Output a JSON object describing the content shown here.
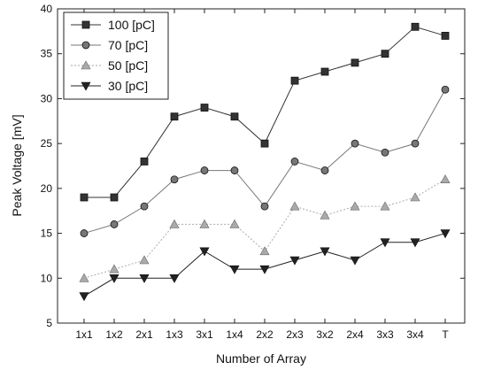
{
  "chart_data": {
    "type": "line",
    "xlabel": "Number of Array",
    "ylabel": "Peak Voltage [mV]",
    "categories": [
      "1x1",
      "1x2",
      "2x1",
      "1x3",
      "3x1",
      "1x4",
      "2x2",
      "2x3",
      "3x2",
      "2x4",
      "3x3",
      "3x4",
      "T"
    ],
    "ylim": [
      5,
      40
    ],
    "yticks": [
      5,
      10,
      15,
      20,
      25,
      30,
      35,
      40
    ],
    "grid": false,
    "legend_position": "top-left",
    "series": [
      {
        "name": "100 [pC]",
        "marker": "square",
        "color": "#333333",
        "dash": "none",
        "values": [
          19,
          19,
          23,
          28,
          29,
          28,
          25,
          32,
          33,
          34,
          35,
          38,
          37
        ]
      },
      {
        "name": "70 [pC]",
        "marker": "circle",
        "color": "#777777",
        "dash": "none",
        "values": [
          15,
          16,
          18,
          21,
          22,
          22,
          18,
          23,
          22,
          25,
          24,
          25,
          31
        ]
      },
      {
        "name": "50 [pC]",
        "marker": "triangle-up",
        "color": "#aaaaaa",
        "dash": "dotted",
        "values": [
          10,
          11,
          12,
          16,
          16,
          16,
          13,
          18,
          17,
          18,
          18,
          19,
          21
        ]
      },
      {
        "name": "30 [pC]",
        "marker": "triangle-down",
        "color": "#222222",
        "dash": "none",
        "values": [
          8,
          10,
          10,
          10,
          13,
          11,
          11,
          12,
          13,
          12,
          14,
          14,
          15
        ]
      }
    ]
  }
}
